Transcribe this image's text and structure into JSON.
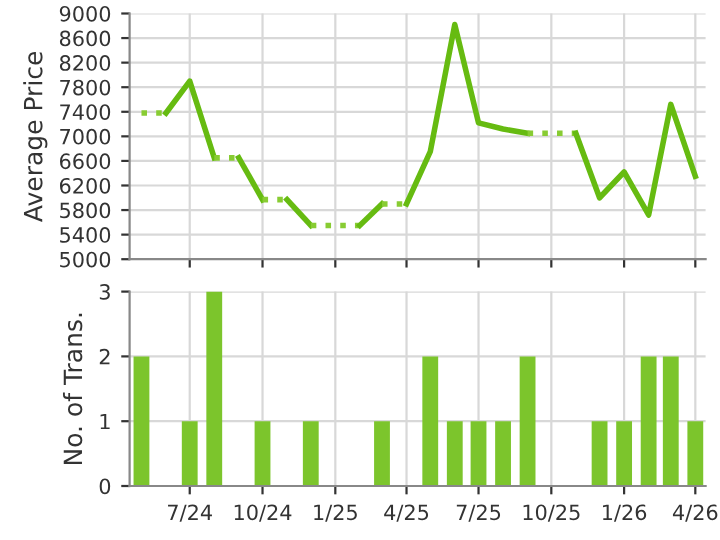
{
  "chart_data": [
    {
      "type": "line",
      "ylabel": "Average Price",
      "xlim": [
        "2024-04-16",
        "2026-04-14"
      ],
      "ylim": [
        5000,
        9000
      ],
      "yticks": [
        5000,
        5400,
        5800,
        6200,
        6600,
        7000,
        7400,
        7800,
        8200,
        8600,
        9000
      ],
      "xticks": [
        {
          "value": "2024-07",
          "label": null
        },
        {
          "value": "2024-10",
          "label": null
        },
        {
          "value": "2025-01",
          "label": null
        },
        {
          "value": "2025-04",
          "label": null
        },
        {
          "value": "2025-07",
          "label": null
        },
        {
          "value": "2025-10",
          "label": null
        },
        {
          "value": "2026-01",
          "label": null
        },
        {
          "value": "2026-04",
          "label": null
        }
      ],
      "tick_labels": "y",
      "grid": true,
      "legend": false,
      "marker": "none",
      "series": [
        {
          "color": "#88cc33",
          "line_style": "dotted",
          "x": [
            "2024-05",
            "2024-06"
          ],
          "values": [
            7380,
            7380
          ]
        },
        {
          "color": "#66bb11",
          "line_style": "solid",
          "x": [
            "2024-06",
            "2024-07",
            "2024-08"
          ],
          "values": [
            7380,
            7900,
            6650
          ]
        },
        {
          "color": "#88cc33",
          "line_style": "dotted",
          "x": [
            "2024-08",
            "2024-09"
          ],
          "values": [
            6650,
            6650
          ]
        },
        {
          "color": "#66bb11",
          "line_style": "solid",
          "x": [
            "2024-09",
            "2024-10"
          ],
          "values": [
            6650,
            5970
          ]
        },
        {
          "color": "#88cc33",
          "line_style": "dotted",
          "x": [
            "2024-10",
            "2024-11"
          ],
          "values": [
            5970,
            5970
          ]
        },
        {
          "color": "#66bb11",
          "line_style": "solid",
          "x": [
            "2024-11",
            "2024-12"
          ],
          "values": [
            5970,
            5550
          ]
        },
        {
          "color": "#88cc33",
          "line_style": "dotted",
          "x": [
            "2024-12",
            "2025-01",
            "2025-02"
          ],
          "values": [
            5550,
            5550,
            5550
          ]
        },
        {
          "color": "#66bb11",
          "line_style": "solid",
          "x": [
            "2025-02",
            "2025-03"
          ],
          "values": [
            5550,
            5900
          ]
        },
        {
          "color": "#88cc33",
          "line_style": "dotted",
          "x": [
            "2025-03",
            "2025-04"
          ],
          "values": [
            5900,
            5900
          ]
        },
        {
          "color": "#66bb11",
          "line_style": "solid",
          "x": [
            "2025-04",
            "2025-05",
            "2025-06",
            "2025-07",
            "2025-08",
            "2025-09"
          ],
          "values": [
            5900,
            6750,
            8820,
            7220,
            7120,
            7050
          ]
        },
        {
          "color": "#88cc33",
          "line_style": "dotted",
          "x": [
            "2025-09",
            "2025-10",
            "2025-11"
          ],
          "values": [
            7050,
            7050,
            7050
          ]
        },
        {
          "color": "#66bb11",
          "line_style": "solid",
          "x": [
            "2025-11",
            "2025-12",
            "2026-01",
            "2026-02",
            "2026-03",
            "2026-04"
          ],
          "values": [
            7050,
            6000,
            6420,
            5720,
            7520,
            6350
          ]
        }
      ]
    },
    {
      "type": "bar",
      "ylabel": "No. of Trans.",
      "xlim": [
        "2024-04-16",
        "2026-04-14"
      ],
      "ylim": [
        0,
        3
      ],
      "yticks": [
        0,
        1,
        2,
        3
      ],
      "xticks": [
        {
          "value": "2024-07",
          "label": "7/24"
        },
        {
          "value": "2024-10",
          "label": "10/24"
        },
        {
          "value": "2025-01",
          "label": "1/25"
        },
        {
          "value": "2025-04",
          "label": "4/25"
        },
        {
          "value": "2025-07",
          "label": "7/25"
        },
        {
          "value": "2025-10",
          "label": "10/25"
        },
        {
          "value": "2026-01",
          "label": "1/26"
        },
        {
          "value": "2026-04",
          "label": "4/26"
        }
      ],
      "grid": true,
      "legend": false,
      "x": [
        "2024-05",
        "2024-06",
        "2024-07",
        "2024-08",
        "2024-09",
        "2024-10",
        "2024-11",
        "2024-12",
        "2025-01",
        "2025-02",
        "2025-03",
        "2025-04",
        "2025-05",
        "2025-06",
        "2025-07",
        "2025-08",
        "2025-09",
        "2025-10",
        "2025-11",
        "2025-12",
        "2026-01",
        "2026-02",
        "2026-03",
        "2026-04"
      ],
      "series": [
        {
          "color": "#7cc52c",
          "values": [
            2,
            0,
            1,
            3,
            0,
            1,
            0,
            1,
            0,
            0,
            1,
            0,
            2,
            1,
            1,
            1,
            2,
            0,
            0,
            1,
            1,
            2,
            2,
            1
          ]
        }
      ]
    }
  ]
}
